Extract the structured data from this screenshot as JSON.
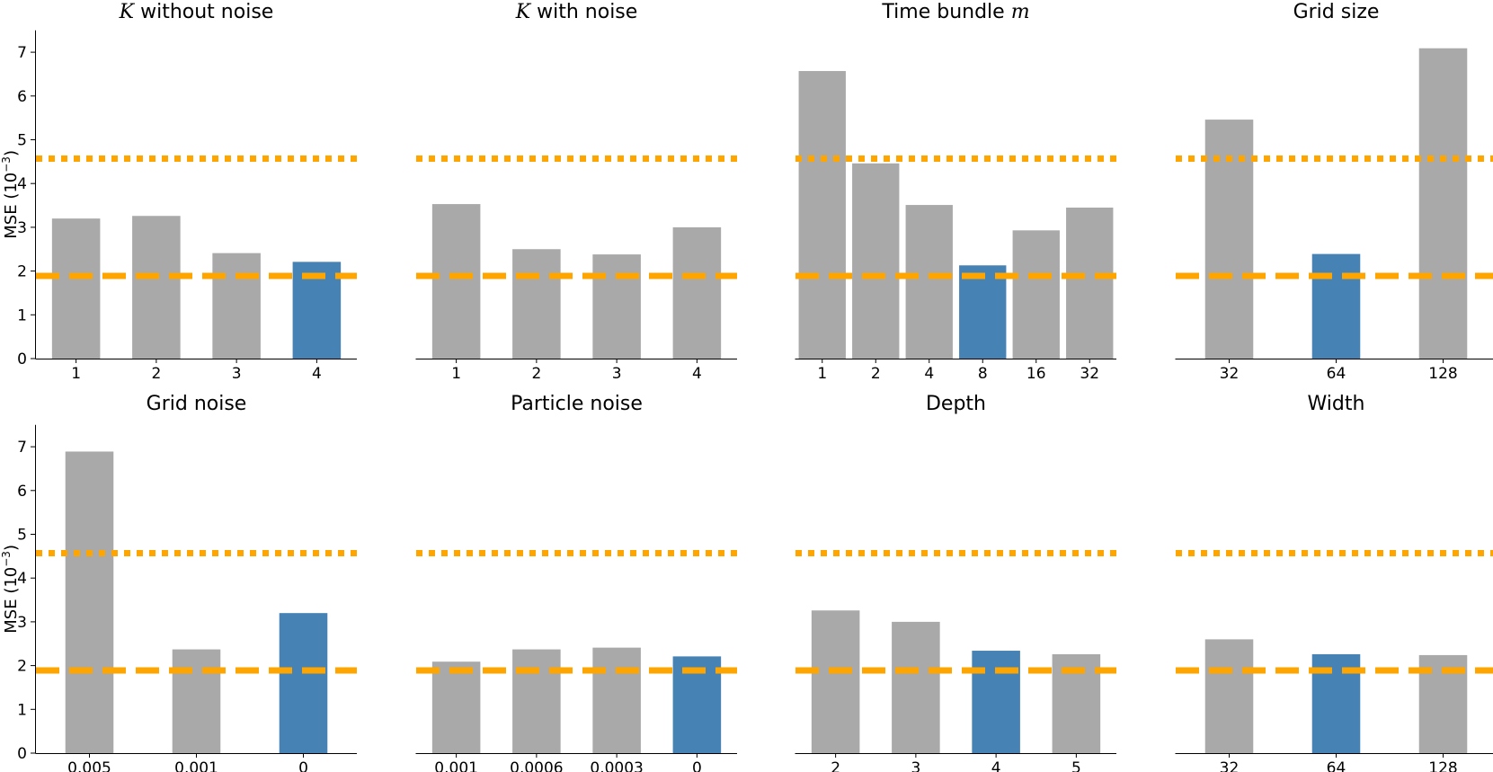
{
  "colors": {
    "bar_default": "#a9a9a9",
    "bar_selected": "#4682b4",
    "reference_lines": "#ffa500"
  },
  "y_axis": {
    "label_text": "MSE",
    "label_unit_base": "10",
    "label_unit_exp": "−3",
    "ticks": [
      "0",
      "1",
      "2",
      "3",
      "4",
      "5",
      "6",
      "7"
    ]
  },
  "chart_data": [
    {
      "type": "bar",
      "title_text": "without noise",
      "title_symbol": "K",
      "categories": [
        "1",
        "2",
        "3",
        "4"
      ],
      "values": [
        3.2,
        3.26,
        2.41,
        2.21
      ],
      "highlight_index": 3,
      "ylim": [
        0,
        7.5
      ],
      "reference_lines": [
        {
          "style": "dotted",
          "value": 4.57
        },
        {
          "style": "dashed",
          "value": 1.89
        }
      ]
    },
    {
      "type": "bar",
      "title_text": "with noise",
      "title_symbol": "K",
      "categories": [
        "1",
        "2",
        "3",
        "4"
      ],
      "values": [
        3.53,
        2.5,
        2.38,
        3.0
      ],
      "highlight_index": null,
      "ylim": [
        0,
        7.5
      ],
      "reference_lines": [
        {
          "style": "dotted",
          "value": 4.57
        },
        {
          "style": "dashed",
          "value": 1.89
        }
      ]
    },
    {
      "type": "bar",
      "title_text": "Time bundle",
      "title_symbol": "m",
      "categories": [
        "1",
        "2",
        "4",
        "8",
        "16",
        "32"
      ],
      "values": [
        6.57,
        4.46,
        3.51,
        2.13,
        2.93,
        3.45
      ],
      "highlight_index": 3,
      "ylim": [
        0,
        7.5
      ],
      "reference_lines": [
        {
          "style": "dotted",
          "value": 4.57
        },
        {
          "style": "dashed",
          "value": 1.89
        }
      ]
    },
    {
      "type": "bar",
      "title_text": "Grid size",
      "title_symbol": "",
      "categories": [
        "32",
        "64",
        "128"
      ],
      "values": [
        5.46,
        2.39,
        7.09
      ],
      "highlight_index": 1,
      "ylim": [
        0,
        7.5
      ],
      "reference_lines": [
        {
          "style": "dotted",
          "value": 4.57
        },
        {
          "style": "dashed",
          "value": 1.89
        }
      ]
    },
    {
      "type": "bar",
      "title_text": "Grid noise",
      "title_symbol": "",
      "categories": [
        "0.005",
        "0.001",
        "0"
      ],
      "values": [
        6.89,
        2.37,
        3.2
      ],
      "highlight_index": 2,
      "ylim": [
        0,
        7.5
      ],
      "reference_lines": [
        {
          "style": "dotted",
          "value": 4.57
        },
        {
          "style": "dashed",
          "value": 1.89
        }
      ]
    },
    {
      "type": "bar",
      "title_text": "Particle noise",
      "title_symbol": "",
      "categories": [
        "0.001",
        "0.0006",
        "0.0003",
        "0"
      ],
      "values": [
        2.09,
        2.37,
        2.41,
        2.21
      ],
      "highlight_index": 3,
      "ylim": [
        0,
        7.5
      ],
      "reference_lines": [
        {
          "style": "dotted",
          "value": 4.57
        },
        {
          "style": "dashed",
          "value": 1.89
        }
      ]
    },
    {
      "type": "bar",
      "title_text": "Depth",
      "title_symbol": "",
      "categories": [
        "2",
        "3",
        "4",
        "5"
      ],
      "values": [
        3.26,
        3.0,
        2.34,
        2.26
      ],
      "highlight_index": 2,
      "ylim": [
        0,
        7.5
      ],
      "reference_lines": [
        {
          "style": "dotted",
          "value": 4.57
        },
        {
          "style": "dashed",
          "value": 1.89
        }
      ]
    },
    {
      "type": "bar",
      "title_text": "Width",
      "title_symbol": "",
      "categories": [
        "32",
        "64",
        "128"
      ],
      "values": [
        2.6,
        2.26,
        2.24
      ],
      "highlight_index": 1,
      "ylim": [
        0,
        7.5
      ],
      "reference_lines": [
        {
          "style": "dotted",
          "value": 4.57
        },
        {
          "style": "dashed",
          "value": 1.89
        }
      ]
    }
  ]
}
